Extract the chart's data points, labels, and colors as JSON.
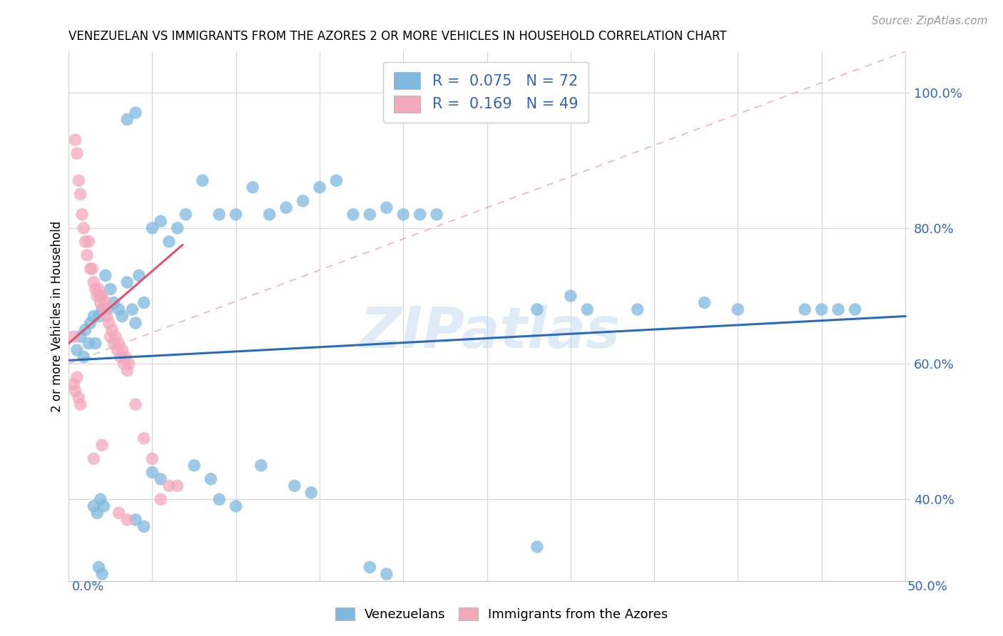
{
  "title": "VENEZUELAN VS IMMIGRANTS FROM THE AZORES 2 OR MORE VEHICLES IN HOUSEHOLD CORRELATION CHART",
  "source": "Source: ZipAtlas.com",
  "ylabel": "2 or more Vehicles in Household",
  "y_tick_vals": [
    0.4,
    0.6,
    0.8,
    1.0
  ],
  "x_lim": [
    0.0,
    0.5
  ],
  "y_lim": [
    0.28,
    1.06
  ],
  "watermark": "ZIPatlas",
  "blue_color": "#7fb9e0",
  "pink_color": "#f4a8bb",
  "blue_line_color": "#2b6cb8",
  "pink_line_color": "#d9546e",
  "blue_scatter_x": [
    0.005,
    0.007,
    0.009,
    0.01,
    0.012,
    0.013,
    0.015,
    0.016,
    0.018,
    0.019,
    0.02,
    0.022,
    0.023,
    0.025,
    0.027,
    0.03,
    0.032,
    0.035,
    0.038,
    0.04,
    0.042,
    0.045,
    0.05,
    0.055,
    0.06,
    0.065,
    0.07,
    0.08,
    0.09,
    0.1,
    0.11,
    0.12,
    0.13,
    0.14,
    0.15,
    0.16,
    0.17,
    0.18,
    0.19,
    0.2,
    0.21,
    0.22,
    0.28,
    0.3,
    0.31,
    0.34,
    0.38,
    0.4,
    0.44,
    0.45,
    0.46,
    0.47,
    0.015,
    0.017,
    0.019,
    0.021,
    0.04,
    0.045,
    0.09,
    0.1,
    0.05,
    0.055,
    0.075,
    0.085,
    0.115,
    0.135,
    0.145,
    0.018,
    0.02,
    0.18,
    0.19,
    0.035,
    0.04,
    0.28
  ],
  "blue_scatter_y": [
    0.62,
    0.64,
    0.61,
    0.65,
    0.63,
    0.66,
    0.67,
    0.63,
    0.67,
    0.7,
    0.68,
    0.73,
    0.68,
    0.71,
    0.69,
    0.68,
    0.67,
    0.72,
    0.68,
    0.66,
    0.73,
    0.69,
    0.8,
    0.81,
    0.78,
    0.8,
    0.82,
    0.87,
    0.82,
    0.82,
    0.86,
    0.82,
    0.83,
    0.84,
    0.86,
    0.87,
    0.82,
    0.82,
    0.83,
    0.82,
    0.82,
    0.82,
    0.68,
    0.7,
    0.68,
    0.68,
    0.69,
    0.68,
    0.68,
    0.68,
    0.68,
    0.68,
    0.39,
    0.38,
    0.4,
    0.39,
    0.37,
    0.36,
    0.4,
    0.39,
    0.44,
    0.43,
    0.45,
    0.43,
    0.45,
    0.42,
    0.41,
    0.3,
    0.29,
    0.3,
    0.29,
    0.96,
    0.97,
    0.33
  ],
  "pink_scatter_x": [
    0.003,
    0.004,
    0.005,
    0.006,
    0.007,
    0.008,
    0.009,
    0.01,
    0.011,
    0.012,
    0.013,
    0.014,
    0.015,
    0.016,
    0.017,
    0.018,
    0.019,
    0.02,
    0.021,
    0.022,
    0.023,
    0.024,
    0.025,
    0.026,
    0.027,
    0.028,
    0.029,
    0.03,
    0.031,
    0.032,
    0.033,
    0.034,
    0.035,
    0.036,
    0.04,
    0.045,
    0.05,
    0.055,
    0.06,
    0.065,
    0.003,
    0.004,
    0.005,
    0.006,
    0.007,
    0.015,
    0.02,
    0.03,
    0.035
  ],
  "pink_scatter_y": [
    0.64,
    0.93,
    0.91,
    0.87,
    0.85,
    0.82,
    0.8,
    0.78,
    0.76,
    0.78,
    0.74,
    0.74,
    0.72,
    0.71,
    0.7,
    0.71,
    0.69,
    0.7,
    0.68,
    0.69,
    0.67,
    0.66,
    0.64,
    0.65,
    0.63,
    0.64,
    0.62,
    0.63,
    0.61,
    0.62,
    0.6,
    0.61,
    0.59,
    0.6,
    0.54,
    0.49,
    0.46,
    0.4,
    0.42,
    0.42,
    0.57,
    0.56,
    0.58,
    0.55,
    0.54,
    0.46,
    0.48,
    0.38,
    0.37
  ]
}
